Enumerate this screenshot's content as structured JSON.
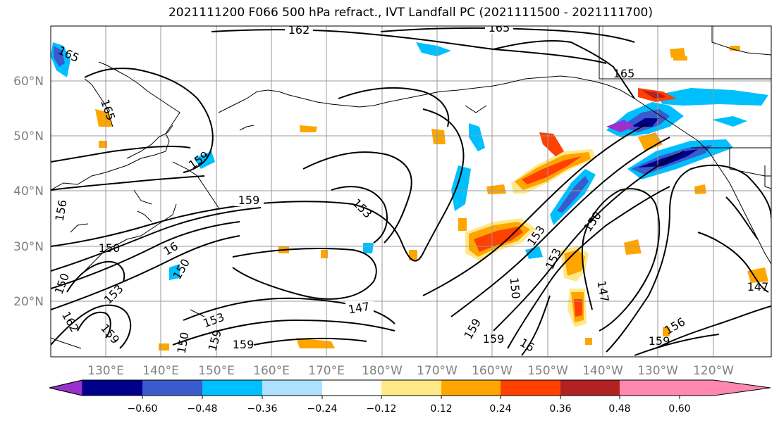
{
  "title": "2021111200 F066 500 hPa refract., IVT Landfall PC (2021111500 - 2021111700)",
  "lat_labels": [
    "60°N",
    "50°N",
    "40°N",
    "30°N",
    "20°N"
  ],
  "lon_labels": [
    "130°E",
    "140°E",
    "150°E",
    "160°E",
    "170°E",
    "180°W",
    "170°W",
    "160°W",
    "150°W",
    "140°W",
    "130°W",
    "120°W"
  ],
  "colorbar": {
    "colors": [
      "#9932cc",
      "#00008b",
      "#3a5bcc",
      "#00bfff",
      "#aee0ff",
      "#ffffff",
      "#ffe888",
      "#ffa500",
      "#ff4000",
      "#b22222",
      "#ff88b0"
    ],
    "tick_labels": [
      "−0.60",
      "−0.48",
      "−0.36",
      "−0.24",
      "−0.12",
      "0.12",
      "0.24",
      "0.36",
      "0.48",
      "0.60"
    ]
  },
  "contour_labels": [
    "162",
    "165",
    "165",
    "165",
    "165",
    "159",
    "159",
    "159",
    "159",
    "159",
    "159",
    "156",
    "156",
    "153",
    "153",
    "153",
    "153",
    "153",
    "150",
    "150",
    "150",
    "150",
    "150",
    "147",
    "147",
    "147",
    "16",
    "16",
    "150",
    "159",
    "159",
    "162"
  ]
}
